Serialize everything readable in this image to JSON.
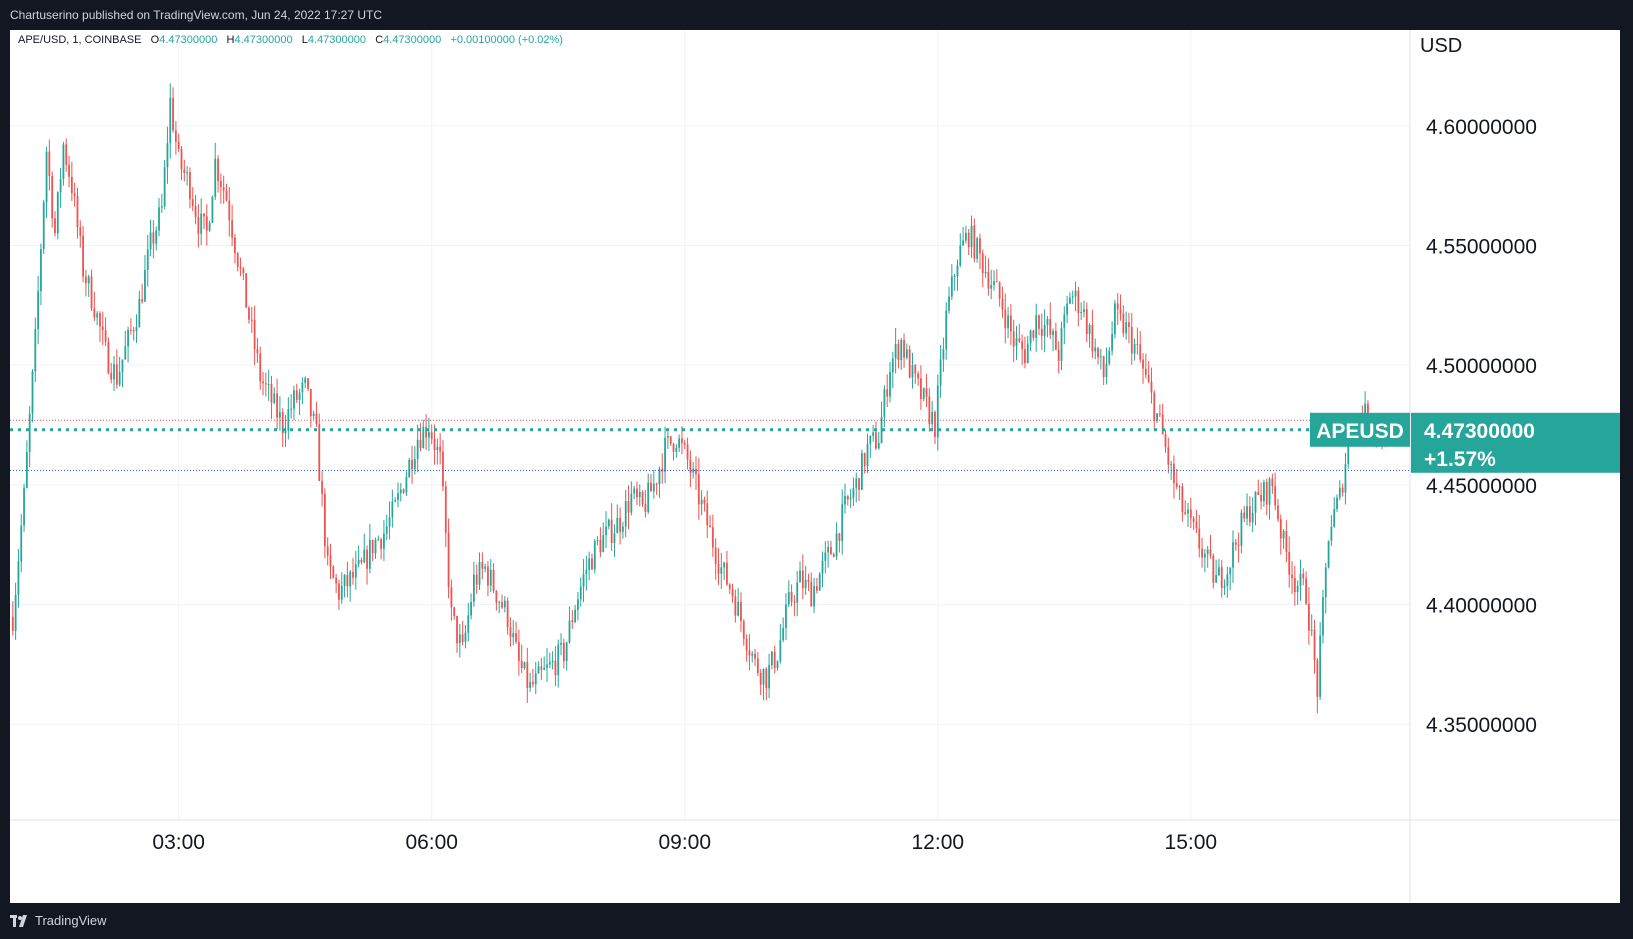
{
  "header": {
    "published_text": "Chartuserino published on TradingView.com, Jun 24, 2022 17:27 UTC"
  },
  "legend": {
    "symbol": "APE/USD, 1, COINBASE",
    "o_label": "O",
    "o_value": "4.47300000",
    "h_label": "H",
    "h_value": "4.47300000",
    "l_label": "L",
    "l_value": "4.47300000",
    "c_label": "C",
    "c_value": "4.47300000",
    "change": "+0.00100000 (+0.02%)"
  },
  "footer": {
    "brand": "TradingView"
  },
  "colors": {
    "up": "#26a69a",
    "down": "#ef5350",
    "grid": "#f0f3fa",
    "price_line": "#26a69a",
    "high_line": "#ef5350",
    "low_line": "#2962ff"
  },
  "chart_data": {
    "type": "candlestick",
    "currency_label": "USD",
    "x_ticks": [
      "03:00",
      "06:00",
      "09:00",
      "12:00",
      "15:00"
    ],
    "y_ticks": [
      "4.60000000",
      "4.55000000",
      "4.50000000",
      "4.45000000",
      "4.40000000",
      "4.35000000"
    ],
    "y_tick_values": [
      4.6,
      4.55,
      4.5,
      4.45,
      4.4,
      4.35
    ],
    "ylim": [
      4.31,
      4.64
    ],
    "last_price": 4.473,
    "last_price_label": "4.47300000",
    "symbol_badge": "APEUSD",
    "change_percent": "+1.57%",
    "session_high_line": 4.477,
    "session_low_line": 4.456,
    "price_path": [
      [
        "01:02",
        4.395
      ],
      [
        "01:10",
        4.445
      ],
      [
        "01:18",
        4.51
      ],
      [
        "01:26",
        4.59
      ],
      [
        "01:32",
        4.555
      ],
      [
        "01:38",
        4.592
      ],
      [
        "01:44",
        4.575
      ],
      [
        "01:52",
        4.54
      ],
      [
        "02:00",
        4.525
      ],
      [
        "02:08",
        4.505
      ],
      [
        "02:16",
        4.495
      ],
      [
        "02:24",
        4.51
      ],
      [
        "02:32",
        4.525
      ],
      [
        "02:40",
        4.55
      ],
      [
        "02:48",
        4.565
      ],
      [
        "02:54",
        4.61
      ],
      [
        "03:00",
        4.585
      ],
      [
        "03:08",
        4.575
      ],
      [
        "03:14",
        4.56
      ],
      [
        "03:20",
        4.555
      ],
      [
        "03:26",
        4.585
      ],
      [
        "03:34",
        4.57
      ],
      [
        "03:42",
        4.545
      ],
      [
        "03:50",
        4.52
      ],
      [
        "03:58",
        4.495
      ],
      [
        "04:06",
        4.485
      ],
      [
        "04:14",
        4.475
      ],
      [
        "04:22",
        4.485
      ],
      [
        "04:30",
        4.49
      ],
      [
        "04:38",
        4.47
      ],
      [
        "04:46",
        4.415
      ],
      [
        "04:54",
        4.405
      ],
      [
        "05:02",
        4.41
      ],
      [
        "05:10",
        4.415
      ],
      [
        "05:18",
        4.425
      ],
      [
        "05:26",
        4.43
      ],
      [
        "05:34",
        4.44
      ],
      [
        "05:42",
        4.455
      ],
      [
        "05:50",
        4.47
      ],
      [
        "05:58",
        4.475
      ],
      [
        "06:06",
        4.46
      ],
      [
        "06:14",
        4.395
      ],
      [
        "06:22",
        4.38
      ],
      [
        "06:30",
        4.41
      ],
      [
        "06:38",
        4.415
      ],
      [
        "06:46",
        4.405
      ],
      [
        "06:54",
        4.395
      ],
      [
        "07:02",
        4.375
      ],
      [
        "07:10",
        4.365
      ],
      [
        "07:18",
        4.37
      ],
      [
        "07:26",
        4.375
      ],
      [
        "07:34",
        4.38
      ],
      [
        "07:42",
        4.4
      ],
      [
        "07:50",
        4.415
      ],
      [
        "07:58",
        4.425
      ],
      [
        "08:06",
        4.43
      ],
      [
        "08:14",
        4.435
      ],
      [
        "08:22",
        4.445
      ],
      [
        "08:30",
        4.44
      ],
      [
        "08:38",
        4.45
      ],
      [
        "08:46",
        4.465
      ],
      [
        "08:54",
        4.47
      ],
      [
        "09:02",
        4.46
      ],
      [
        "09:10",
        4.445
      ],
      [
        "09:18",
        4.43
      ],
      [
        "09:26",
        4.415
      ],
      [
        "09:34",
        4.405
      ],
      [
        "09:42",
        4.39
      ],
      [
        "09:50",
        4.375
      ],
      [
        "09:58",
        4.37
      ],
      [
        "10:06",
        4.38
      ],
      [
        "10:14",
        4.4
      ],
      [
        "10:22",
        4.41
      ],
      [
        "10:30",
        4.405
      ],
      [
        "10:38",
        4.415
      ],
      [
        "10:46",
        4.425
      ],
      [
        "10:54",
        4.44
      ],
      [
        "11:02",
        4.45
      ],
      [
        "11:10",
        4.465
      ],
      [
        "11:18",
        4.47
      ],
      [
        "11:26",
        4.5
      ],
      [
        "11:34",
        4.51
      ],
      [
        "11:42",
        4.495
      ],
      [
        "11:50",
        4.485
      ],
      [
        "11:58",
        4.475
      ],
      [
        "12:06",
        4.52
      ],
      [
        "12:14",
        4.545
      ],
      [
        "12:22",
        4.555
      ],
      [
        "12:30",
        4.545
      ],
      [
        "12:38",
        4.535
      ],
      [
        "12:46",
        4.525
      ],
      [
        "12:54",
        4.51
      ],
      [
        "13:02",
        4.505
      ],
      [
        "13:10",
        4.52
      ],
      [
        "13:18",
        4.515
      ],
      [
        "13:26",
        4.505
      ],
      [
        "13:34",
        4.53
      ],
      [
        "13:42",
        4.525
      ],
      [
        "13:50",
        4.51
      ],
      [
        "13:58",
        4.495
      ],
      [
        "14:06",
        4.52
      ],
      [
        "14:14",
        4.515
      ],
      [
        "14:22",
        4.505
      ],
      [
        "14:30",
        4.49
      ],
      [
        "14:38",
        4.475
      ],
      [
        "14:46",
        4.455
      ],
      [
        "14:54",
        4.44
      ],
      [
        "15:02",
        4.43
      ],
      [
        "15:10",
        4.42
      ],
      [
        "15:18",
        4.41
      ],
      [
        "15:26",
        4.415
      ],
      [
        "15:34",
        4.43
      ],
      [
        "15:42",
        4.44
      ],
      [
        "15:50",
        4.445
      ],
      [
        "15:58",
        4.45
      ],
      [
        "16:06",
        4.425
      ],
      [
        "16:14",
        4.41
      ],
      [
        "16:22",
        4.405
      ],
      [
        "16:30",
        4.365
      ],
      [
        "16:38",
        4.43
      ],
      [
        "16:46",
        4.445
      ],
      [
        "16:54",
        4.475
      ],
      [
        "17:02",
        4.48
      ],
      [
        "17:10",
        4.475
      ],
      [
        "17:16",
        4.473
      ]
    ]
  }
}
